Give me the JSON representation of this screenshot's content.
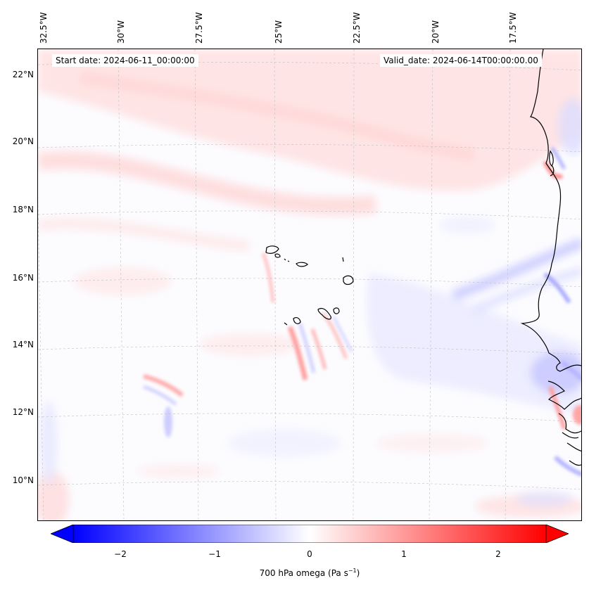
{
  "map": {
    "start_date": "Start date: 2024-06-11_00:00:00",
    "valid_date": "Valid_date: 2024-06-14T00:00:00.00",
    "lon_labels": [
      "32.5°W",
      "30°W",
      "27.5°W",
      "25°W",
      "22.5°W",
      "20°W",
      "17.5°W"
    ],
    "lat_labels": [
      "22°N",
      "20°N",
      "18°N",
      "16°N",
      "14°N",
      "12°N",
      "10°N"
    ],
    "colormap": "bwr",
    "negative_color": "#0000ff",
    "zero_color": "#ffffff",
    "positive_color": "#ff0000"
  },
  "colorbar": {
    "ticks": [
      "−2",
      "−1",
      "0",
      "1",
      "2"
    ],
    "label_main": "700 hPa omega (Pa s",
    "label_sup": "−1",
    "label_end": ")",
    "range": [
      -2.7,
      2.7
    ]
  }
}
